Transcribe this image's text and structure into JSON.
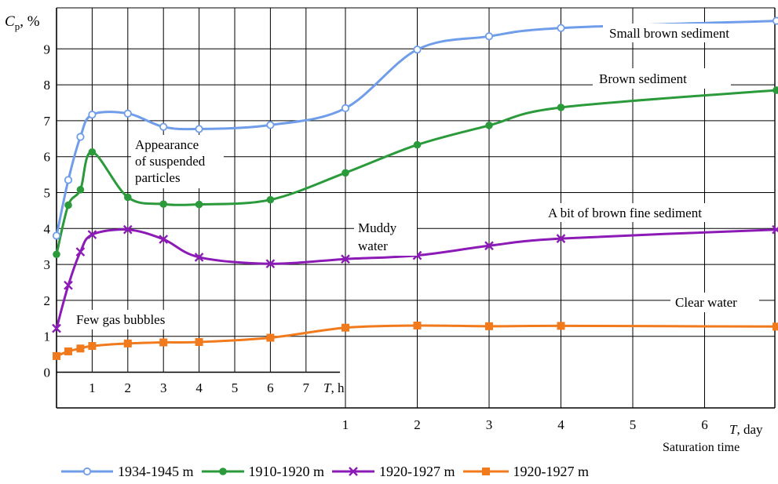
{
  "chart_data": {
    "type": "line",
    "ylabel": "Cp, %",
    "ylabel_main": "C",
    "ylabel_sub": "p",
    "ylabel_unit": ", %",
    "ylim": [
      0,
      9.8
    ],
    "y_ticks": [
      "0",
      "1",
      "2",
      "3",
      "4",
      "5",
      "6",
      "7",
      "8",
      "9"
    ],
    "x_hours_ticks": [
      "1",
      "2",
      "3",
      "4",
      "5",
      "6",
      "7"
    ],
    "x_hours_label": "T, h",
    "x_hours_label_var": "T",
    "x_hours_label_unit": ", h",
    "x_days_ticks": [
      "1",
      "2",
      "3",
      "4",
      "5",
      "6"
    ],
    "x_days_label": "T, day",
    "x_days_label_var": "T",
    "x_days_label_unit": ", day",
    "x_caption": "Saturation time",
    "grid": true,
    "legend_position": "bottom",
    "series": [
      {
        "name": "1934-1945 m",
        "color": "#6f9de9",
        "marker": "open-circle",
        "points": [
          {
            "x": "0 h",
            "y": 3.8
          },
          {
            "x": "0.33 h",
            "y": 5.35
          },
          {
            "x": "0.67 h",
            "y": 6.55
          },
          {
            "x": "1 h",
            "y": 7.17
          },
          {
            "x": "2 h",
            "y": 7.2
          },
          {
            "x": "3 h",
            "y": 6.83
          },
          {
            "x": "4 h",
            "y": 6.77
          },
          {
            "x": "6 h",
            "y": 6.88
          },
          {
            "x": "1 day",
            "y": 7.35
          },
          {
            "x": "2 day",
            "y": 8.98
          },
          {
            "x": "3 day",
            "y": 9.35
          },
          {
            "x": "4 day",
            "y": 9.58
          },
          {
            "x": "7 day",
            "y": 9.78
          }
        ]
      },
      {
        "name": "1910-1920 m",
        "color": "#2a9a3a",
        "marker": "filled-circle",
        "points": [
          {
            "x": "0 h",
            "y": 3.28
          },
          {
            "x": "0.33 h",
            "y": 4.65
          },
          {
            "x": "0.67 h",
            "y": 5.08
          },
          {
            "x": "1 h",
            "y": 6.13
          },
          {
            "x": "2 h",
            "y": 4.87
          },
          {
            "x": "3 h",
            "y": 4.68
          },
          {
            "x": "4 h",
            "y": 4.67
          },
          {
            "x": "6 h",
            "y": 4.8
          },
          {
            "x": "1 day",
            "y": 5.55
          },
          {
            "x": "2 day",
            "y": 6.33
          },
          {
            "x": "3 day",
            "y": 6.87
          },
          {
            "x": "4 day",
            "y": 7.37
          },
          {
            "x": "7 day",
            "y": 7.85
          }
        ]
      },
      {
        "name": "1920-1927 m",
        "color": "#8c1ab6",
        "marker": "cross",
        "points": [
          {
            "x": "0 h",
            "y": 1.22
          },
          {
            "x": "0.33 h",
            "y": 2.42
          },
          {
            "x": "0.67 h",
            "y": 3.35
          },
          {
            "x": "1 h",
            "y": 3.83
          },
          {
            "x": "2 h",
            "y": 3.97
          },
          {
            "x": "3 h",
            "y": 3.7
          },
          {
            "x": "4 h",
            "y": 3.2
          },
          {
            "x": "6 h",
            "y": 3.02
          },
          {
            "x": "1 day",
            "y": 3.15
          },
          {
            "x": "2 day",
            "y": 3.25
          },
          {
            "x": "3 day",
            "y": 3.52
          },
          {
            "x": "4 day",
            "y": 3.72
          },
          {
            "x": "7 day",
            "y": 3.97
          }
        ]
      },
      {
        "name": "1920-1927 m",
        "color": "#f07a1c",
        "marker": "filled-square",
        "points": [
          {
            "x": "0 h",
            "y": 0.45
          },
          {
            "x": "0.33 h",
            "y": 0.58
          },
          {
            "x": "0.67 h",
            "y": 0.66
          },
          {
            "x": "1 h",
            "y": 0.73
          },
          {
            "x": "2 h",
            "y": 0.8
          },
          {
            "x": "3 h",
            "y": 0.83
          },
          {
            "x": "4 h",
            "y": 0.84
          },
          {
            "x": "6 h",
            "y": 0.96
          },
          {
            "x": "1 day",
            "y": 1.24
          },
          {
            "x": "2 day",
            "y": 1.3
          },
          {
            "x": "3 day",
            "y": 1.28
          },
          {
            "x": "4 day",
            "y": 1.29
          },
          {
            "x": "7 day",
            "y": 1.27
          }
        ]
      }
    ],
    "annotations": [
      "Small brown sediment",
      "Brown sediment",
      "Appearance",
      "of suspended",
      "particles",
      "A bit of brown fine sediment",
      "Muddy",
      "water",
      "Clear water",
      "Few gas bubbles"
    ]
  }
}
